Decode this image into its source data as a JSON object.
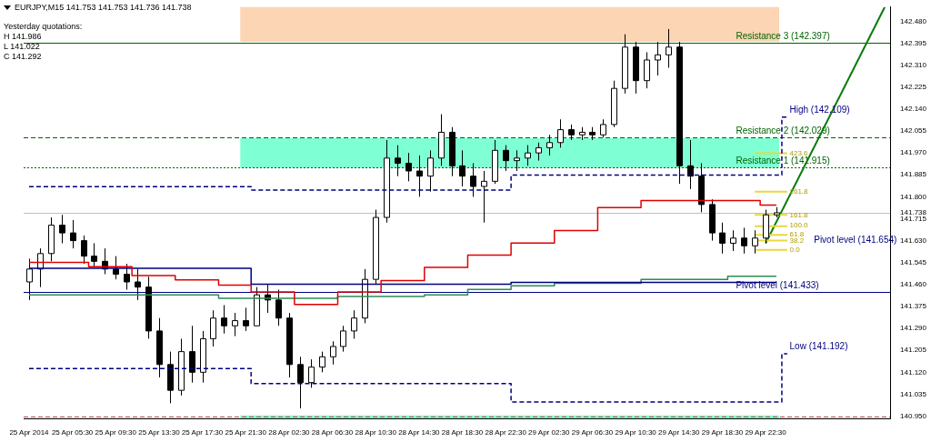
{
  "chart_data": {
    "type": "candlestick",
    "title": "EURJPY,M15  141.753 141.753 141.736 141.738",
    "annotations": [
      "Yesterday quotations:",
      "H 141.986",
      "L 141.022",
      "C 141.292",
      "High (142.109)",
      "Low (141.192)",
      "Pivot level (141.654)",
      "423.6",
      "261.8",
      "161.8",
      "100.0",
      "61.8",
      "38.2",
      "0.0"
    ],
    "categories": [
      "25 Apr 2014",
      null,
      null,
      null,
      "25 Apr 05:30",
      null,
      null,
      null,
      "25 Apr 09:30",
      null,
      null,
      null,
      "25 Apr 13:30",
      null,
      null,
      null,
      "25 Apr 17:30",
      null,
      null,
      null,
      "25 Apr 21:30",
      null,
      null,
      null,
      "28 Apr 02:30",
      null,
      null,
      null,
      "28 Apr 06:30",
      null,
      null,
      null,
      "28 Apr 10:30",
      null,
      null,
      null,
      "28 Apr 14:30",
      null,
      null,
      null,
      "28 Apr 18:30",
      null,
      null,
      null,
      "28 Apr 22:30",
      null,
      null,
      null,
      "29 Apr 02:30",
      null,
      null,
      null,
      "29 Apr 06:30",
      null,
      null,
      null,
      "29 Apr 10:30",
      null,
      null,
      null,
      "29 Apr 14:30",
      null,
      null,
      null,
      "29 Apr 18:30",
      null,
      null,
      null,
      "29 Apr 22:30",
      null,
      null,
      null,
      null,
      null,
      null,
      null,
      null,
      null,
      null,
      null
    ],
    "ohlc": [
      [
        141.47,
        141.56,
        141.4,
        141.52
      ],
      [
        141.52,
        141.6,
        141.45,
        141.58
      ],
      [
        141.58,
        141.72,
        141.55,
        141.69
      ],
      [
        141.69,
        141.73,
        141.62,
        141.66
      ],
      [
        141.66,
        141.71,
        141.6,
        141.63
      ],
      [
        141.63,
        141.65,
        141.54,
        141.57
      ],
      [
        141.57,
        141.62,
        141.53,
        141.55
      ],
      [
        141.55,
        141.6,
        141.5,
        141.52
      ],
      [
        141.52,
        141.57,
        141.48,
        141.5
      ],
      [
        141.5,
        141.54,
        141.44,
        141.47
      ],
      [
        141.47,
        141.52,
        141.4,
        141.45
      ],
      [
        141.45,
        141.49,
        141.25,
        141.28
      ],
      [
        141.28,
        141.33,
        141.1,
        141.15
      ],
      [
        141.15,
        141.2,
        141.0,
        141.05
      ],
      [
        141.05,
        141.25,
        141.03,
        141.2
      ],
      [
        141.2,
        141.3,
        141.08,
        141.12
      ],
      [
        141.12,
        141.28,
        141.08,
        141.25
      ],
      [
        141.25,
        141.36,
        141.22,
        141.33
      ],
      [
        141.33,
        141.38,
        141.27,
        141.3
      ],
      [
        141.3,
        141.35,
        141.26,
        141.32
      ],
      [
        141.32,
        141.37,
        141.28,
        141.3
      ],
      [
        141.3,
        141.45,
        141.3,
        141.42
      ],
      [
        141.42,
        141.46,
        141.35,
        141.4
      ],
      [
        141.4,
        141.44,
        141.3,
        141.33
      ],
      [
        141.33,
        141.35,
        141.1,
        141.15
      ],
      [
        141.15,
        141.18,
        140.98,
        141.08
      ],
      [
        141.08,
        141.17,
        141.06,
        141.14
      ],
      [
        141.14,
        141.2,
        141.12,
        141.18
      ],
      [
        141.18,
        141.24,
        141.15,
        141.22
      ],
      [
        141.22,
        141.3,
        141.2,
        141.28
      ],
      [
        141.28,
        141.36,
        141.25,
        141.33
      ],
      [
        141.33,
        141.52,
        141.31,
        141.48
      ],
      [
        141.48,
        141.75,
        141.46,
        141.72
      ],
      [
        141.72,
        142.02,
        141.7,
        141.95
      ],
      [
        141.95,
        142.0,
        141.88,
        141.93
      ],
      [
        141.93,
        141.97,
        141.86,
        141.9
      ],
      [
        141.9,
        141.96,
        141.8,
        141.88
      ],
      [
        141.88,
        141.98,
        141.82,
        141.95
      ],
      [
        141.95,
        142.12,
        141.92,
        142.05
      ],
      [
        142.05,
        142.07,
        141.88,
        141.92
      ],
      [
        141.92,
        141.98,
        141.84,
        141.88
      ],
      [
        141.88,
        141.93,
        141.8,
        141.84
      ],
      [
        141.84,
        141.9,
        141.7,
        141.86
      ],
      [
        141.86,
        142.02,
        141.85,
        141.98
      ],
      [
        141.98,
        142.0,
        141.9,
        141.94
      ],
      [
        141.94,
        141.98,
        141.9,
        141.95
      ],
      [
        141.95,
        142.0,
        141.92,
        141.97
      ],
      [
        141.97,
        142.01,
        141.94,
        141.99
      ],
      [
        141.99,
        142.04,
        141.96,
        142.01
      ],
      [
        142.01,
        142.1,
        141.99,
        142.06
      ],
      [
        142.06,
        142.08,
        142.02,
        142.04
      ],
      [
        142.04,
        142.07,
        142.02,
        142.05
      ],
      [
        142.05,
        142.07,
        142.02,
        142.04
      ],
      [
        142.04,
        142.1,
        142.03,
        142.08
      ],
      [
        142.08,
        142.25,
        142.07,
        142.22
      ],
      [
        142.22,
        142.43,
        142.2,
        142.38
      ],
      [
        142.38,
        142.4,
        142.2,
        142.25
      ],
      [
        142.25,
        142.36,
        142.22,
        142.33
      ],
      [
        142.33,
        142.4,
        142.27,
        142.35
      ],
      [
        142.35,
        142.45,
        142.3,
        142.38
      ],
      [
        142.38,
        142.4,
        141.85,
        141.92
      ],
      [
        141.92,
        142.02,
        141.83,
        141.88
      ],
      [
        141.88,
        141.93,
        141.74,
        141.77
      ],
      [
        141.77,
        141.79,
        141.63,
        141.66
      ],
      [
        141.66,
        141.7,
        141.58,
        141.62
      ],
      [
        141.62,
        141.67,
        141.59,
        141.64
      ],
      [
        141.64,
        141.68,
        141.58,
        141.61
      ],
      [
        141.61,
        141.67,
        141.58,
        141.64
      ],
      [
        141.64,
        141.75,
        141.62,
        141.73
      ],
      [
        141.73,
        141.76,
        141.72,
        141.738
      ],
      null,
      null,
      null,
      null,
      null,
      null,
      null,
      null,
      null,
      null
    ],
    "series": [
      {
        "type": "step",
        "color": "#e00000",
        "values": [
          141.546,
          141.546,
          141.546,
          141.546,
          141.546,
          141.546,
          141.529,
          141.529,
          141.529,
          141.529,
          141.495,
          141.495,
          141.495,
          141.495,
          141.478,
          141.478,
          141.478,
          141.478,
          141.458,
          141.458,
          141.458,
          141.431,
          141.431,
          141.431,
          141.431,
          141.383,
          141.383,
          141.383,
          141.383,
          141.431,
          141.431,
          141.431,
          141.431,
          141.475,
          141.475,
          141.475,
          141.475,
          141.526,
          141.526,
          141.526,
          141.526,
          141.574,
          141.574,
          141.574,
          141.574,
          141.621,
          141.621,
          141.621,
          141.621,
          141.669,
          141.669,
          141.669,
          141.669,
          141.758,
          141.758,
          141.758,
          141.758,
          141.785,
          141.785,
          141.785,
          141.785,
          141.785,
          141.785,
          141.785,
          141.785,
          141.785,
          141.785,
          141.785,
          141.768,
          141.768,
          null,
          null,
          null,
          null,
          null,
          null,
          null,
          null,
          null,
          null
        ]
      },
      {
        "type": "step",
        "color": "#000080",
        "values": [
          141.523,
          141.523,
          141.523,
          141.523,
          141.523,
          141.523,
          141.523,
          141.523,
          141.523,
          141.523,
          141.523,
          141.523,
          141.523,
          141.523,
          141.523,
          141.523,
          141.523,
          141.523,
          141.523,
          141.523,
          141.523,
          141.461,
          141.461,
          141.461,
          141.461,
          141.461,
          141.461,
          141.461,
          141.461,
          141.461,
          141.461,
          141.461,
          141.461,
          141.461,
          141.461,
          141.461,
          141.461,
          141.461,
          141.461,
          141.461,
          141.461,
          141.461,
          141.461,
          141.461,
          141.461,
          141.468,
          141.468,
          141.468,
          141.468,
          141.468,
          141.468,
          141.468,
          141.468,
          141.468,
          141.468,
          141.468,
          141.468,
          141.468,
          141.468,
          141.468,
          141.468,
          141.468,
          141.468,
          141.468,
          141.468,
          141.468,
          141.468,
          141.468,
          141.468,
          141.468,
          null,
          null,
          null,
          null,
          null,
          null,
          null,
          null,
          null,
          null
        ]
      },
      {
        "type": "step",
        "color": "#2e8b57",
        "values": [
          141.42,
          141.42,
          141.42,
          141.42,
          141.42,
          141.42,
          141.42,
          141.42,
          141.42,
          141.42,
          141.42,
          141.42,
          141.42,
          141.42,
          141.42,
          141.42,
          141.42,
          141.42,
          141.407,
          141.407,
          141.407,
          141.407,
          141.407,
          141.407,
          141.407,
          141.407,
          141.407,
          141.407,
          141.407,
          141.414,
          141.414,
          141.414,
          141.414,
          141.414,
          141.414,
          141.414,
          141.414,
          141.42,
          141.42,
          141.42,
          141.42,
          141.441,
          141.441,
          141.441,
          141.441,
          141.455,
          141.455,
          141.455,
          141.455,
          141.465,
          141.465,
          141.465,
          141.465,
          141.465,
          141.465,
          141.465,
          141.465,
          141.48,
          141.48,
          141.48,
          141.48,
          141.48,
          141.48,
          141.48,
          141.48,
          141.492,
          141.492,
          141.492,
          141.492,
          141.492,
          null,
          null,
          null,
          null,
          null,
          null,
          null,
          null,
          null,
          null
        ]
      },
      {
        "type": "step",
        "color": "#000080",
        "line_style": "dashed",
        "values": [
          141.839,
          141.839,
          141.839,
          141.839,
          141.839,
          141.839,
          141.839,
          141.839,
          141.839,
          141.839,
          141.839,
          141.839,
          141.839,
          141.839,
          141.839,
          141.839,
          141.839,
          141.839,
          141.839,
          141.839,
          141.839,
          141.826,
          141.826,
          141.826,
          141.826,
          141.826,
          141.826,
          141.826,
          141.826,
          141.826,
          141.826,
          141.826,
          141.826,
          141.826,
          141.826,
          141.826,
          141.826,
          141.826,
          141.826,
          141.826,
          141.826,
          141.826,
          141.826,
          141.826,
          141.826,
          141.884,
          141.884,
          141.884,
          141.884,
          141.884,
          141.884,
          141.884,
          141.884,
          141.884,
          141.884,
          141.884,
          141.884,
          141.884,
          141.884,
          141.884,
          141.884,
          141.884,
          141.884,
          141.884,
          141.884,
          141.884,
          141.884,
          141.884,
          141.884,
          141.884,
          142.109,
          null,
          null,
          null,
          null,
          null,
          null,
          null,
          null,
          null
        ]
      },
      {
        "type": "step",
        "color": "#000080",
        "line_style": "dashed",
        "values": [
          141.134,
          141.134,
          141.134,
          141.134,
          141.134,
          141.134,
          141.134,
          141.134,
          141.134,
          141.134,
          141.134,
          141.134,
          141.134,
          141.134,
          141.134,
          141.134,
          141.134,
          141.134,
          141.134,
          141.134,
          141.134,
          141.076,
          141.076,
          141.076,
          141.076,
          141.076,
          141.076,
          141.076,
          141.076,
          141.076,
          141.076,
          141.076,
          141.076,
          141.076,
          141.076,
          141.076,
          141.076,
          141.076,
          141.076,
          141.076,
          141.076,
          141.076,
          141.076,
          141.076,
          141.076,
          141.005,
          141.005,
          141.005,
          141.005,
          141.005,
          141.005,
          141.005,
          141.005,
          141.005,
          141.005,
          141.005,
          141.005,
          141.005,
          141.005,
          141.005,
          141.005,
          141.005,
          141.005,
          141.005,
          141.005,
          141.005,
          141.005,
          141.005,
          141.005,
          141.005,
          141.192,
          null,
          null,
          null,
          null,
          null,
          null,
          null,
          null,
          null
        ]
      },
      {
        "type": "line",
        "color": "#e8d840",
        "values": [
          null,
          null,
          null,
          null,
          null,
          null,
          null,
          null,
          null,
          null,
          null,
          null,
          null,
          null,
          null,
          null,
          null,
          null,
          null,
          null,
          null,
          null,
          null,
          null,
          null,
          null,
          null,
          null,
          null,
          null,
          null,
          null,
          null,
          null,
          null,
          null,
          null,
          null,
          null,
          null,
          null,
          null,
          null,
          null,
          null,
          null,
          null,
          null,
          null,
          null,
          null,
          null,
          null,
          null,
          null,
          null,
          null,
          null,
          null,
          null,
          null,
          null,
          null,
          null,
          null,
          null,
          null,
          141.969,
          null,
          null,
          141.969,
          null,
          null,
          null,
          null,
          null,
          null,
          null,
          null,
          null
        ]
      },
      {
        "type": "line",
        "color": "#e8d840",
        "values": [
          null,
          null,
          null,
          null,
          null,
          null,
          null,
          null,
          null,
          null,
          null,
          null,
          null,
          null,
          null,
          null,
          null,
          null,
          null,
          null,
          null,
          null,
          null,
          null,
          null,
          null,
          null,
          null,
          null,
          null,
          null,
          null,
          null,
          null,
          null,
          null,
          null,
          null,
          null,
          null,
          null,
          null,
          null,
          null,
          null,
          null,
          null,
          null,
          null,
          null,
          null,
          null,
          null,
          null,
          null,
          null,
          null,
          null,
          null,
          null,
          null,
          null,
          null,
          null,
          null,
          null,
          null,
          141.82,
          null,
          null,
          141.82,
          null,
          null,
          null,
          null,
          null,
          null,
          null,
          null,
          null
        ]
      },
      {
        "type": "line",
        "color": "#e8d840",
        "values": [
          null,
          null,
          null,
          null,
          null,
          null,
          null,
          null,
          null,
          null,
          null,
          null,
          null,
          null,
          null,
          null,
          null,
          null,
          null,
          null,
          null,
          null,
          null,
          null,
          null,
          null,
          null,
          null,
          null,
          null,
          null,
          null,
          null,
          null,
          null,
          null,
          null,
          null,
          null,
          null,
          null,
          null,
          null,
          null,
          null,
          null,
          null,
          null,
          null,
          null,
          null,
          null,
          null,
          null,
          null,
          null,
          null,
          null,
          null,
          null,
          null,
          null,
          null,
          null,
          null,
          null,
          null,
          141.73,
          null,
          null,
          141.73,
          null,
          null,
          null,
          null,
          null,
          null,
          null,
          null,
          null
        ]
      },
      {
        "type": "line",
        "color": "#e8d840",
        "values": [
          null,
          null,
          null,
          null,
          null,
          null,
          null,
          null,
          null,
          null,
          null,
          null,
          null,
          null,
          null,
          null,
          null,
          null,
          null,
          null,
          null,
          null,
          null,
          null,
          null,
          null,
          null,
          null,
          null,
          null,
          null,
          null,
          null,
          null,
          null,
          null,
          null,
          null,
          null,
          null,
          null,
          null,
          null,
          null,
          null,
          null,
          null,
          null,
          null,
          null,
          null,
          null,
          null,
          null,
          null,
          null,
          null,
          null,
          null,
          null,
          null,
          null,
          null,
          null,
          null,
          null,
          null,
          141.686,
          null,
          null,
          141.686,
          null,
          null,
          null,
          null,
          null,
          null,
          null,
          null,
          null
        ]
      },
      {
        "type": "line",
        "color": "#e8d840",
        "values": [
          null,
          null,
          null,
          null,
          null,
          null,
          null,
          null,
          null,
          null,
          null,
          null,
          null,
          null,
          null,
          null,
          null,
          null,
          null,
          null,
          null,
          null,
          null,
          null,
          null,
          null,
          null,
          null,
          null,
          null,
          null,
          null,
          null,
          null,
          null,
          null,
          null,
          null,
          null,
          null,
          null,
          null,
          null,
          null,
          null,
          null,
          null,
          null,
          null,
          null,
          null,
          null,
          null,
          null,
          null,
          null,
          null,
          null,
          null,
          null,
          null,
          null,
          null,
          null,
          null,
          null,
          null,
          141.652,
          null,
          null,
          141.652,
          null,
          null,
          null,
          null,
          null,
          null,
          null,
          null,
          null
        ]
      },
      {
        "type": "line",
        "color": "#e8d840",
        "values": [
          null,
          null,
          null,
          null,
          null,
          null,
          null,
          null,
          null,
          null,
          null,
          null,
          null,
          null,
          null,
          null,
          null,
          null,
          null,
          null,
          null,
          null,
          null,
          null,
          null,
          null,
          null,
          null,
          null,
          null,
          null,
          null,
          null,
          null,
          null,
          null,
          null,
          null,
          null,
          null,
          null,
          null,
          null,
          null,
          null,
          null,
          null,
          null,
          null,
          null,
          null,
          null,
          null,
          null,
          null,
          null,
          null,
          null,
          null,
          null,
          null,
          null,
          null,
          null,
          null,
          null,
          null,
          141.63,
          null,
          null,
          141.63,
          null,
          null,
          null,
          null,
          null,
          null,
          null,
          null,
          null
        ]
      },
      {
        "type": "line",
        "color": "#e8d840",
        "values": [
          null,
          null,
          null,
          null,
          null,
          null,
          null,
          null,
          null,
          null,
          null,
          null,
          null,
          null,
          null,
          null,
          null,
          null,
          null,
          null,
          null,
          null,
          null,
          null,
          null,
          null,
          null,
          null,
          null,
          null,
          null,
          null,
          null,
          null,
          null,
          null,
          null,
          null,
          null,
          null,
          null,
          null,
          null,
          null,
          null,
          null,
          null,
          null,
          null,
          null,
          null,
          null,
          null,
          null,
          null,
          null,
          null,
          null,
          null,
          null,
          null,
          null,
          null,
          null,
          null,
          null,
          null,
          141.594,
          null,
          null,
          141.594,
          null,
          null,
          null,
          null,
          null,
          null,
          null,
          null,
          null
        ]
      },
      {
        "type": "line",
        "color": "#0a7a0a",
        "values": [
          null,
          null,
          null,
          null,
          null,
          null,
          null,
          null,
          null,
          null,
          null,
          null,
          null,
          null,
          null,
          null,
          null,
          null,
          null,
          null,
          null,
          null,
          null,
          null,
          null,
          null,
          null,
          null,
          null,
          null,
          null,
          null,
          null,
          null,
          null,
          null,
          null,
          null,
          null,
          null,
          null,
          null,
          null,
          null,
          null,
          null,
          null,
          null,
          null,
          null,
          null,
          null,
          null,
          null,
          null,
          null,
          null,
          null,
          null,
          null,
          null,
          null,
          null,
          null,
          null,
          null,
          null,
          null,
          141.62,
          null,
          null,
          null,
          null,
          null,
          null,
          null,
          null,
          null,
          null,
          142.535
        ]
      }
    ],
    "ref_lines": [
      {
        "axis": "y",
        "value": 142.397,
        "label": "Resistance 3 (142.397)",
        "color": "#006400",
        "line_style": "solid"
      },
      {
        "axis": "y",
        "value": 142.029,
        "label": "Resistance 2 (142.029)",
        "color": "#006400",
        "line_style": "dashed"
      },
      {
        "axis": "y",
        "value": 141.915,
        "label": "Resistance 1 (141.915)",
        "color": "#006400",
        "line_style": "dotted"
      },
      {
        "axis": "y",
        "value": 141.433,
        "label": "Pivot level (141.433)",
        "color": "#000080",
        "line_style": "solid"
      },
      {
        "axis": "y",
        "value": 141.738,
        "color": "#c0c0c0",
        "line_style": "solid"
      },
      {
        "axis": "y",
        "value": 140.95,
        "color": "#c04040",
        "line_style": "dashed"
      }
    ],
    "bands": [
      {
        "axis": "y",
        "from": 142.4,
        "to": 142.535,
        "color": "#fcd5b4"
      },
      {
        "axis": "y",
        "from": 141.911,
        "to": 142.027,
        "color": "#7fffd4"
      },
      {
        "axis": "y",
        "from": 140.942,
        "to": 140.953,
        "color": "#7fffd4"
      }
    ],
    "ylim": [
      140.94,
      142.535
    ],
    "yticks": [
      {
        "value": 142.48,
        "label": "142.480"
      },
      {
        "value": 142.395,
        "label": "142.395"
      },
      {
        "value": 142.31,
        "label": "142.310"
      },
      {
        "value": 142.225,
        "label": "142.225"
      },
      {
        "value": 142.14,
        "label": "142.140"
      },
      {
        "value": 142.055,
        "label": "142.055"
      },
      {
        "value": 141.97,
        "label": "141.970"
      },
      {
        "value": 141.885,
        "label": "141.885"
      },
      {
        "value": 141.8,
        "label": "141.800"
      },
      {
        "value": 141.738,
        "label": "141.738"
      },
      {
        "value": 141.715,
        "label": "141.715"
      },
      {
        "value": 141.63,
        "label": "141.630"
      },
      {
        "value": 141.545,
        "label": "141.545"
      },
      {
        "value": 141.46,
        "label": "141.460"
      },
      {
        "value": 141.375,
        "label": "141.375"
      },
      {
        "value": 141.29,
        "label": "141.290"
      },
      {
        "value": 141.205,
        "label": "141.205"
      },
      {
        "value": 141.12,
        "label": "141.120"
      },
      {
        "value": 141.035,
        "label": "141.035"
      },
      {
        "value": 140.95,
        "label": "140.950"
      }
    ],
    "grid": false,
    "legend": false,
    "marker": "none"
  }
}
